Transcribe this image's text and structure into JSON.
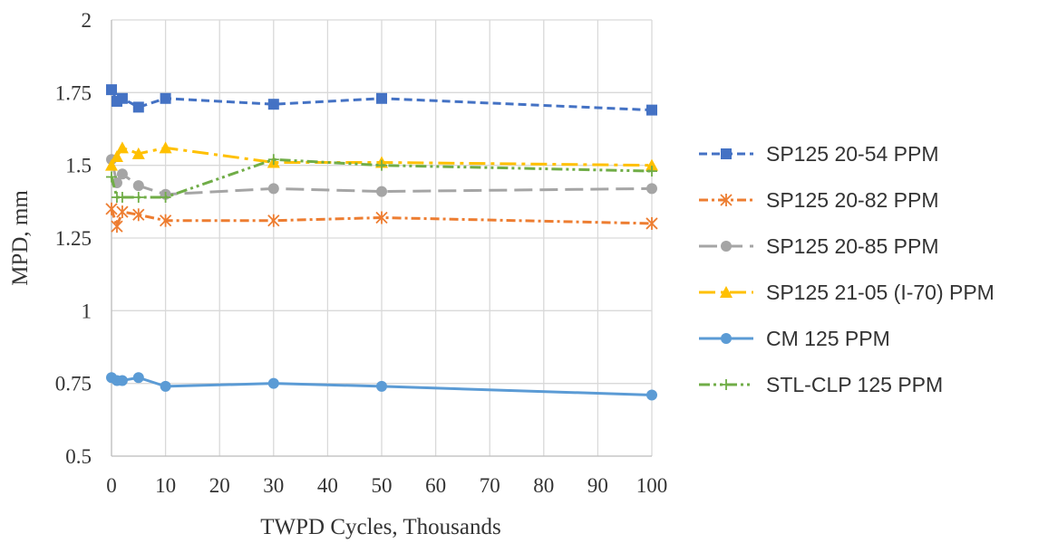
{
  "chart_data": {
    "type": "line",
    "title": "",
    "xlabel": "TWPD Cycles, Thousands",
    "ylabel": "MPD, mm",
    "xlim": [
      0,
      100
    ],
    "ylim": [
      0.5,
      2
    ],
    "xticks": [
      "0",
      "10",
      "20",
      "30",
      "40",
      "50",
      "60",
      "70",
      "80",
      "90",
      "100"
    ],
    "xtick_values": [
      0,
      10,
      20,
      30,
      40,
      50,
      60,
      70,
      80,
      90,
      100
    ],
    "yticks": [
      "0.5",
      "0.75",
      "1",
      "1.25",
      "1.5",
      "1.75",
      "2"
    ],
    "ytick_values": [
      0.5,
      0.75,
      1,
      1.25,
      1.5,
      1.75,
      2
    ],
    "grid": true,
    "legend_position": "right",
    "x": [
      0,
      1,
      2,
      5,
      10,
      30,
      50,
      100
    ],
    "series": [
      {
        "name": "SP125 20-54 PPM",
        "color": "#4472C4",
        "marker": "square",
        "dash": "dashed",
        "values": [
          1.76,
          1.72,
          1.73,
          1.7,
          1.73,
          1.71,
          1.73,
          1.69
        ]
      },
      {
        "name": "SP125 20-82 PPM",
        "color": "#ED7D31",
        "marker": "asterisk",
        "dash": "dashdot",
        "values": [
          1.35,
          1.29,
          1.34,
          1.33,
          1.31,
          1.31,
          1.32,
          1.3
        ]
      },
      {
        "name": "SP125 20-85 PPM",
        "color": "#A5A5A5",
        "marker": "circle",
        "dash": "longdash",
        "values": [
          1.52,
          1.44,
          1.47,
          1.43,
          1.4,
          1.42,
          1.41,
          1.42
        ]
      },
      {
        "name": "SP125 21-05 (I-70) PPM",
        "color": "#FFC000",
        "marker": "triangle",
        "dash": "longdashdot",
        "values": [
          1.5,
          1.53,
          1.56,
          1.54,
          1.56,
          1.51,
          1.51,
          1.5
        ]
      },
      {
        "name": "CM 125 PPM",
        "color": "#5B9BD5",
        "marker": "circle",
        "dash": "solid",
        "values": [
          0.77,
          0.76,
          0.76,
          0.77,
          0.74,
          0.75,
          0.74,
          0.71
        ]
      },
      {
        "name": "STL-CLP 125 PPM",
        "color": "#70AD47",
        "marker": "plus",
        "dash": "dashdotdot",
        "values": [
          1.46,
          1.39,
          1.39,
          1.39,
          1.39,
          1.52,
          1.5,
          1.48
        ]
      }
    ]
  }
}
